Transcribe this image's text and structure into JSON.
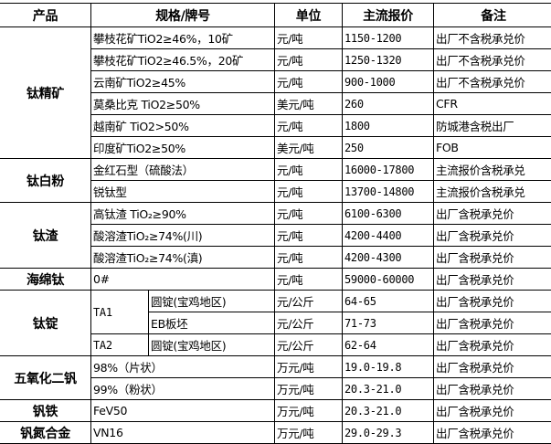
{
  "headers": {
    "product": "产品",
    "spec": "规格/牌号",
    "unit": "单位",
    "price": "主流报价",
    "note": "备注"
  },
  "groups": [
    {
      "product": "钛精矿",
      "items": [
        {
          "spec": "攀枝花矿TiO2≥46%，10矿",
          "unit": "元/吨",
          "price": "1150-1200",
          "note": "出厂不含税承兑价"
        },
        {
          "spec": "攀枝花矿TiO2≥46.5%，20矿",
          "unit": "元/吨",
          "price": "1250-1320",
          "note": "出厂不含税承兑价"
        },
        {
          "spec": "云南矿TiO2≥45%",
          "unit": "元/吨",
          "price": "900-1000",
          "note": "出厂不含税承兑价"
        },
        {
          "spec": "莫桑比克 TiO2≥50%",
          "unit": "美元/吨",
          "price": "260",
          "note": "CFR"
        },
        {
          "spec": "越南矿 TiO2>50%",
          "unit": "元/吨",
          "price": "1800",
          "note": "防城港含税出厂"
        },
        {
          "spec": "印度矿TiO2≥50%",
          "unit": "美元/吨",
          "price": "250",
          "note": "FOB"
        }
      ]
    },
    {
      "product": "钛白粉",
      "items": [
        {
          "spec": "金红石型（硫酸法）",
          "unit": "元/吨",
          "price": "16000-17800",
          "note": "主流报价含税承兑"
        },
        {
          "spec": "锐钛型",
          "unit": "元/吨",
          "price": "13700-14800",
          "note": "主流报价含税承兑"
        }
      ]
    },
    {
      "product": "钛渣",
      "items": [
        {
          "spec": "高钛渣 TiO₂≥90%",
          "unit": "元/吨",
          "price": "6100-6300",
          "note": "出厂含税承兑价"
        },
        {
          "spec": "酸溶渣TiO₂≥74%(川)",
          "unit": "元/吨",
          "price": "4200-4400",
          "note": "出厂含税承兑价"
        },
        {
          "spec": "酸溶渣TiO₂≥74%(滇)",
          "unit": "元/吨",
          "price": "4200-4300",
          "note": "出厂含税承兑价"
        }
      ]
    },
    {
      "product": "海绵钛",
      "items": [
        {
          "spec": "0#",
          "unit": "元/吨",
          "price": "59000-60000",
          "note": "出厂含税承兑价"
        }
      ]
    },
    {
      "product": "钛锭",
      "subgroups": [
        {
          "grade": "TA1",
          "items": [
            {
              "spec": "圆锭(宝鸡地区)",
              "unit": "元/公斤",
              "price": "64-65",
              "note": "出厂含税承兑价"
            },
            {
              "spec": "EB板坯",
              "unit": "元/公斤",
              "price": "71-73",
              "note": "出厂含税承兑价"
            }
          ]
        },
        {
          "grade": "TA2",
          "items": [
            {
              "spec": "圆锭(宝鸡地区)",
              "unit": "元/公斤",
              "price": "62-64",
              "note": "出厂含税承兑价"
            }
          ]
        }
      ]
    },
    {
      "product": "五氧化二钒",
      "items": [
        {
          "spec": "98%（片状）",
          "unit": "万元/吨",
          "price": "19.0-19.8",
          "note": "出厂含税承兑价"
        },
        {
          "spec": "99%（粉状）",
          "unit": "万元/吨",
          "price": "20.3-21.0",
          "note": "出厂含税承兑价"
        }
      ]
    },
    {
      "product": "钒铁",
      "items": [
        {
          "spec": "FeV50",
          "unit": "万元/吨",
          "price": "20.3-21.0",
          "note": "出厂含税承兑价"
        }
      ]
    },
    {
      "product": "钒氮合金",
      "items": [
        {
          "spec": "VN16",
          "unit": "万元/吨",
          "price": "29.0-29.3",
          "note": "出厂含税承兑价"
        }
      ]
    }
  ]
}
